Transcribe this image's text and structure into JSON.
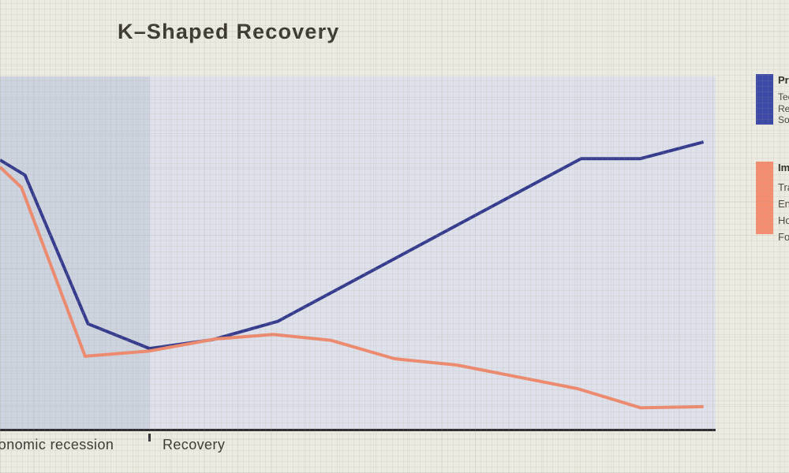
{
  "page": {
    "title": "K–Shaped Recovery",
    "background_color": "#ecebe1"
  },
  "axis": {
    "recession_label": "Economic recession",
    "recovery_label": "Recovery",
    "axis_color": "#2f2e33"
  },
  "legend": {
    "groups": [
      {
        "heading": "Prospering",
        "items": [
          "Tech",
          "Retail",
          "Software services"
        ],
        "swatch_color": "#3c49a6"
      },
      {
        "heading": "Impacted",
        "items": [
          "Travel",
          "Entertainment",
          "Hospitality",
          "Food services"
        ],
        "swatch_color": "#f68d70"
      }
    ]
  },
  "chart_data": {
    "type": "line",
    "title": "K–Shaped Recovery",
    "xlabel": "",
    "ylabel": "",
    "xlim": [
      0,
      100
    ],
    "ylim": [
      0,
      100
    ],
    "grid": false,
    "legend_position": "right",
    "x_phases": [
      {
        "label": "Economic recession",
        "start_pct": 0,
        "end_pct": 20.9,
        "fill": "#ced3e0"
      },
      {
        "label": "Recovery",
        "start_pct": 20.9,
        "end_pct": 100,
        "fill": "#dee1eb"
      }
    ],
    "recession_end_pct": 20.9,
    "series": [
      {
        "name": "Prospering (Tech, Retail, Software services)",
        "color": "#343b8e",
        "points": [
          [
            0,
            76.3
          ],
          [
            3.5,
            72.0
          ],
          [
            12.3,
            29.8
          ],
          [
            20.9,
            22.8
          ],
          [
            29.7,
            25.3
          ],
          [
            38.8,
            30.5
          ],
          [
            81.2,
            76.7
          ],
          [
            89.5,
            76.7
          ],
          [
            98.3,
            81.4
          ]
        ]
      },
      {
        "name": "Impacted (Travel, Entertainment, Hospitality, Food services)",
        "color": "#ef8a6e",
        "points": [
          [
            0,
            74.3
          ],
          [
            3.0,
            68.5
          ],
          [
            11.9,
            20.6
          ],
          [
            20.9,
            22.1
          ],
          [
            30.1,
            25.5
          ],
          [
            38.2,
            26.8
          ],
          [
            46.3,
            25.1
          ],
          [
            55.1,
            19.9
          ],
          [
            63.9,
            18.1
          ],
          [
            80.7,
            11.4
          ],
          [
            89.5,
            6.0
          ],
          [
            98.3,
            6.3
          ]
        ]
      }
    ]
  }
}
